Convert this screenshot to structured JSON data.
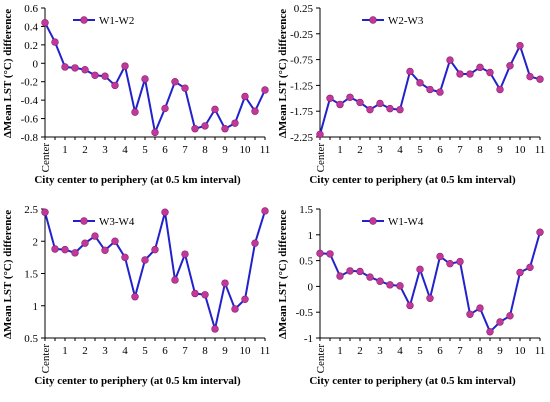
{
  "shared": {
    "xlabel": "City center to periphery (at 0.5 km interval)",
    "ylabel": "ΔMean LST (°C) difference",
    "x_tick_labels": [
      "Center",
      "1",
      "2",
      "3",
      "4",
      "5",
      "6",
      "7",
      "8",
      "9",
      "10",
      "11"
    ],
    "line_color": "#2222cc",
    "marker_color": "#c0389a"
  },
  "chart_data": [
    {
      "type": "line",
      "series": [
        {
          "name": "W1-W2",
          "values": [
            0.44,
            0.23,
            -0.04,
            -0.05,
            -0.07,
            -0.13,
            -0.14,
            -0.24,
            -0.03,
            -0.53,
            -0.17,
            -0.75,
            -0.49,
            -0.2,
            -0.27,
            -0.71,
            -0.68,
            -0.5,
            -0.71,
            -0.65,
            -0.36,
            -0.52,
            -0.29
          ]
        }
      ],
      "x": [
        0,
        0.5,
        1,
        1.5,
        2,
        2.5,
        3,
        3.5,
        4,
        4.5,
        5,
        5.5,
        6,
        6.5,
        7,
        7.5,
        8,
        8.5,
        9,
        9.5,
        10,
        10.5,
        11
      ],
      "xlabel": "City center to periphery (at 0.5 km interval)",
      "ylabel": "ΔMean LST (°C) difference",
      "ylim": [
        -0.8,
        0.6
      ],
      "yticks": [
        "-0.8",
        "-0.6",
        "-0.4",
        "-0.2",
        "0",
        "0.2",
        "0.4",
        "0.6"
      ],
      "legend": "top-left"
    },
    {
      "type": "line",
      "series": [
        {
          "name": "W2-W3",
          "values": [
            -2.2,
            -1.5,
            -1.62,
            -1.48,
            -1.58,
            -1.72,
            -1.6,
            -1.7,
            -1.72,
            -0.98,
            -1.2,
            -1.33,
            -1.38,
            -0.76,
            -1.03,
            -1.03,
            -0.9,
            -1.0,
            -1.33,
            -0.87,
            -0.48,
            -1.08,
            -1.13
          ]
        }
      ],
      "x": [
        0,
        0.5,
        1,
        1.5,
        2,
        2.5,
        3,
        3.5,
        4,
        4.5,
        5,
        5.5,
        6,
        6.5,
        7,
        7.5,
        8,
        8.5,
        9,
        9.5,
        10,
        10.5,
        11
      ],
      "xlabel": "City center to periphery (at 0.5 km interval)",
      "ylabel": "ΔMean LST (°C) difference",
      "ylim": [
        -2.25,
        0.25
      ],
      "yticks": [
        "-2.25",
        "-1.75",
        "-1.25",
        "-0.75",
        "-0.25",
        "0.25"
      ],
      "legend": "top-center"
    },
    {
      "type": "line",
      "series": [
        {
          "name": "W3-W4",
          "values": [
            2.45,
            1.88,
            1.87,
            1.82,
            1.97,
            2.08,
            1.86,
            2.0,
            1.75,
            1.14,
            1.71,
            1.87,
            2.45,
            1.4,
            1.8,
            1.19,
            1.17,
            0.64,
            1.35,
            0.95,
            1.1,
            1.97,
            2.47
          ]
        }
      ],
      "x": [
        0,
        0.5,
        1,
        1.5,
        2,
        2.5,
        3,
        3.5,
        4,
        4.5,
        5,
        5.5,
        6,
        6.5,
        7,
        7.5,
        8,
        8.5,
        9,
        9.5,
        10,
        10.5,
        11
      ],
      "xlabel": "City center to periphery (at 0.5 km interval)",
      "ylabel": "ΔMean LST (°C) difference",
      "ylim": [
        0.5,
        2.5
      ],
      "yticks": [
        "0.5",
        "1",
        "1.5",
        "2",
        "2.5"
      ],
      "legend": "top-left"
    },
    {
      "type": "line",
      "series": [
        {
          "name": "W1-W4",
          "values": [
            0.64,
            0.63,
            0.2,
            0.3,
            0.29,
            0.18,
            0.1,
            0.03,
            0.01,
            -0.37,
            0.33,
            -0.23,
            0.58,
            0.44,
            0.48,
            -0.54,
            -0.42,
            -0.88,
            -0.69,
            -0.57,
            0.27,
            0.37,
            1.05
          ]
        }
      ],
      "x": [
        0,
        0.5,
        1,
        1.5,
        2,
        2.5,
        3,
        3.5,
        4,
        4.5,
        5,
        5.5,
        6,
        6.5,
        7,
        7.5,
        8,
        8.5,
        9,
        9.5,
        10,
        10.5,
        11
      ],
      "xlabel": "City center to periphery (at 0.5 km interval)",
      "ylabel": "ΔMean LST (°C) difference",
      "ylim": [
        -1.0,
        1.5
      ],
      "yticks": [
        "-1",
        "-0.5",
        "0",
        "0.5",
        "1",
        "1.5"
      ],
      "legend": "top-center"
    }
  ]
}
